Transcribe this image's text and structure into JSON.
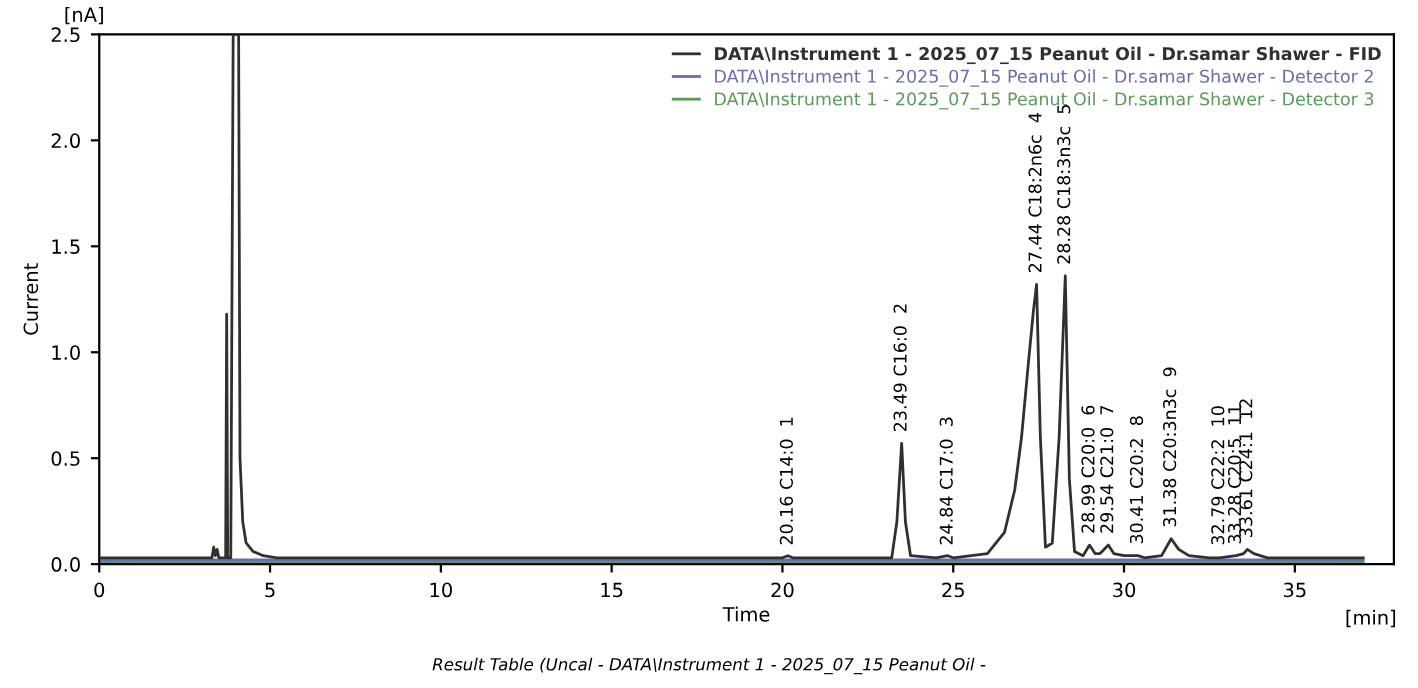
{
  "chart_data": {
    "type": "line",
    "xlabel": "Time",
    "ylabel": "Current",
    "xlim": [
      0,
      37.9
    ],
    "ylim": [
      0,
      2.5
    ],
    "xticks": [
      0,
      5,
      10,
      15,
      20,
      25,
      30,
      35
    ],
    "yticks": [
      {
        "value": 0,
        "label": "0.0"
      },
      {
        "value": 0.5,
        "label": "0.5"
      },
      {
        "value": 1,
        "label": "1.0"
      },
      {
        "value": 1.5,
        "label": "1.5"
      },
      {
        "value": 2,
        "label": "2.0"
      },
      {
        "value": 2.5,
        "label": "2.5"
      }
    ],
    "grid": false,
    "legend": "top right",
    "line_style": "solid",
    "marker": "none",
    "series": [
      {
        "name": "DATA\\Instrument 1 - 2025_07_15 Peanut Oil - Dr.samar Shawer - FID",
        "color": "#303030",
        "x": [
          0,
          3.3,
          3.35,
          3.4,
          3.45,
          3.5,
          3.7,
          3.73,
          3.76,
          3.85,
          3.92,
          4.08,
          4.12,
          4.2,
          4.3,
          4.5,
          4.8,
          5.2,
          6,
          10,
          15,
          20,
          20.16,
          20.3,
          23.2,
          23.35,
          23.49,
          23.6,
          23.75,
          24.5,
          24.84,
          25,
          26,
          26.5,
          26.8,
          27.0,
          27.2,
          27.35,
          27.44,
          27.55,
          27.7,
          27.9,
          28.1,
          28.28,
          28.4,
          28.55,
          28.8,
          28.99,
          29.15,
          29.3,
          29.54,
          29.7,
          30.0,
          30.41,
          30.6,
          31.1,
          31.38,
          31.6,
          31.9,
          32.5,
          32.79,
          33.28,
          33.5,
          33.61,
          33.8,
          34.2,
          35,
          37
        ],
        "values": [
          0.03,
          0.03,
          0.08,
          0.04,
          0.07,
          0.03,
          0.03,
          1.18,
          0.03,
          0.03,
          2.5,
          2.5,
          0.5,
          0.2,
          0.1,
          0.06,
          0.04,
          0.03,
          0.03,
          0.03,
          0.03,
          0.03,
          0.04,
          0.03,
          0.03,
          0.2,
          0.57,
          0.2,
          0.04,
          0.03,
          0.04,
          0.03,
          0.05,
          0.15,
          0.35,
          0.6,
          0.95,
          1.2,
          1.32,
          0.6,
          0.08,
          0.1,
          0.6,
          1.36,
          0.4,
          0.06,
          0.04,
          0.09,
          0.05,
          0.05,
          0.09,
          0.05,
          0.04,
          0.04,
          0.03,
          0.04,
          0.12,
          0.07,
          0.04,
          0.03,
          0.03,
          0.04,
          0.05,
          0.07,
          0.05,
          0.03,
          0.03,
          0.03
        ]
      },
      {
        "name": "DATA\\Instrument 1 - 2025_07_15 Peanut Oil - Dr.samar Shawer - Detector 2",
        "color": "#6b6bb0",
        "x": [
          0,
          37
        ],
        "values": [
          0.02,
          0.02
        ]
      },
      {
        "name": "DATA\\Instrument 1 - 2025_07_15 Peanut Oil - Dr.samar Shawer - Detector 3",
        "color": "#5a9a5a",
        "x": [
          0,
          37
        ],
        "values": [
          0.01,
          0.01
        ]
      }
    ],
    "annotations": [
      {
        "text": "20.16 C14:0  1",
        "x": 20.16,
        "y": 0.035
      },
      {
        "text": "23.49 C16:0  2",
        "x": 23.49,
        "y": 0.57
      },
      {
        "text": "24.84 C17:0  3",
        "x": 24.84,
        "y": 0.035
      },
      {
        "text": "27.44 C18:2n6c  4",
        "x": 27.44,
        "y": 1.32
      },
      {
        "text": "28.28 C18:3n3c  5",
        "x": 28.28,
        "y": 1.36
      },
      {
        "text": "28.99 C20:0  6",
        "x": 28.99,
        "y": 0.09
      },
      {
        "text": "29.54 C21:0  7",
        "x": 29.54,
        "y": 0.09
      },
      {
        "text": "30.41 C20:2  8",
        "x": 30.41,
        "y": 0.04
      },
      {
        "text": "31.38 C20:3n3c  9",
        "x": 31.38,
        "y": 0.12
      },
      {
        "text": "32.79 C22:2  10",
        "x": 32.79,
        "y": 0.035
      },
      {
        "text": "33.28 C20:5  11",
        "x": 33.28,
        "y": 0.04
      },
      {
        "text": "33.61 C24:1  12",
        "x": 33.61,
        "y": 0.07
      },
      "[nA]",
      "[min]",
      "Result Table (Uncal - DATA\\Instrument 1 - 2025_07_15 Peanut Oil -"
    ]
  }
}
